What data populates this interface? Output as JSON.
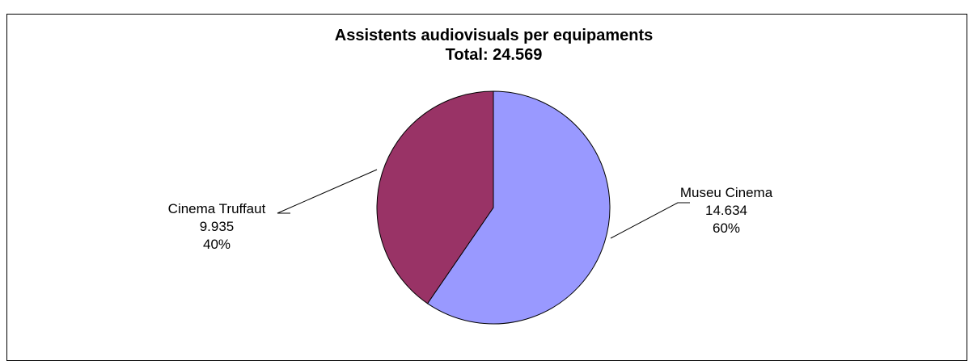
{
  "chart_data": {
    "type": "pie",
    "title": "Assistents audiovisuals per equipaments",
    "subtitle": "Total: 24.569",
    "slices": [
      {
        "name": "Museu Cinema",
        "value": 14634,
        "value_label": "14.634",
        "percent_label": "60%",
        "color": "#9999FF"
      },
      {
        "name": "Cinema Truffaut",
        "value": 9935,
        "value_label": "9.935",
        "percent_label": "40%",
        "color": "#993366"
      }
    ],
    "legend": "none",
    "grid": false
  }
}
